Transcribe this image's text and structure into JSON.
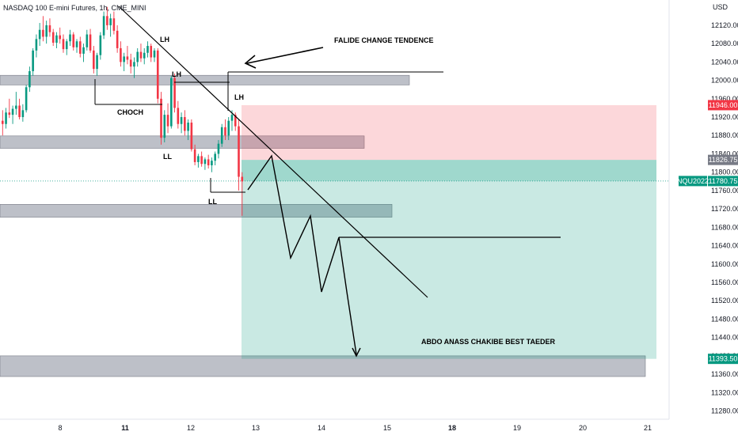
{
  "header": {
    "symbol_title": "NASDAQ 100 E-mini Futures, 1h, CME_MINI"
  },
  "currency": "USD",
  "chart_data": {
    "type": "candlestick",
    "y_ticks": [
      12120,
      12080,
      12040,
      12000,
      11960,
      11920,
      11880,
      11840,
      11800,
      11760,
      11720,
      11680,
      11640,
      11600,
      11560,
      11520,
      11480,
      11440,
      11400,
      11360,
      11320,
      11280
    ],
    "y_tick_labels": [
      "12120.00",
      "12080.00",
      "12040.00",
      "12000.00",
      "11960.00",
      "11920.00",
      "11880.00",
      "11840.00",
      "11800.00",
      "11760.00",
      "11720.00",
      "11680.00",
      "11640.00",
      "11600.00",
      "11560.00",
      "11520.00",
      "11480.00",
      "11440.00",
      "11400.00",
      "11360.00",
      "11320.00",
      "11280.00"
    ],
    "ylim": [
      11262,
      12175
    ],
    "x_ticks": [
      {
        "label": "8",
        "bold": false
      },
      {
        "label": "11",
        "bold": true
      },
      {
        "label": "12",
        "bold": false
      },
      {
        "label": "13",
        "bold": false
      },
      {
        "label": "14",
        "bold": false
      },
      {
        "label": "15",
        "bold": false
      },
      {
        "label": "18",
        "bold": true
      },
      {
        "label": "19",
        "bold": false
      },
      {
        "label": "20",
        "bold": false
      },
      {
        "label": "21",
        "bold": false
      }
    ],
    "price_tags": [
      {
        "label": "11946.00",
        "value": 11946,
        "color": "#f23645"
      },
      {
        "label": "11826.75",
        "value": 11826.75,
        "color": "#787b86"
      },
      {
        "label": "11780.75",
        "value": 11780.75,
        "color": "#089981"
      },
      {
        "label": "11393.50",
        "value": 11393.5,
        "color": "#089981"
      }
    ],
    "symbol_tag": "NQU2022",
    "annotations": {
      "falide": "FALIDE CHANGE TENDENCE",
      "lh1": "LH",
      "lh2": "LH",
      "lh3": "LH",
      "choch": "CHOCH",
      "ll1": "LL",
      "ll2": "LL",
      "author": "ABDO ANASS CHAKIBE BEST TAEDER"
    },
    "zones": [
      {
        "name": "zone-12000",
        "top": 12011,
        "bottom": 11990,
        "x_from": 0,
        "x_to": 517
      },
      {
        "name": "zone-11870",
        "top": 11879,
        "bottom": 11852,
        "x_from": 0,
        "x_to": 460
      },
      {
        "name": "zone-11710",
        "top": 11730,
        "bottom": 11702,
        "x_from": 0,
        "x_to": 495
      },
      {
        "name": "zone-11360",
        "top": 11400,
        "bottom": 11355,
        "x_from": 0,
        "x_to": 815
      }
    ],
    "position": {
      "entry": 11826.75,
      "stop": 11946,
      "target": 11393.5
    },
    "candles": [
      [
        11912,
        11935,
        11880,
        11905
      ],
      [
        11905,
        11940,
        11895,
        11930
      ],
      [
        11930,
        11960,
        11918,
        11925
      ],
      [
        11925,
        11945,
        11905,
        11938
      ],
      [
        11938,
        11975,
        11925,
        11945
      ],
      [
        11945,
        11960,
        11915,
        11920
      ],
      [
        11920,
        11948,
        11910,
        11935
      ],
      [
        11935,
        11990,
        11930,
        11985
      ],
      [
        11985,
        12030,
        11975,
        12020
      ],
      [
        12020,
        12070,
        12010,
        12065
      ],
      [
        12065,
        12100,
        12050,
        12090
      ],
      [
        12090,
        12125,
        12075,
        12110
      ],
      [
        12110,
        12140,
        12085,
        12095
      ],
      [
        12095,
        12130,
        12080,
        12120
      ],
      [
        12120,
        12135,
        12095,
        12105
      ],
      [
        12105,
        12112,
        12075,
        12082
      ],
      [
        12082,
        12105,
        12070,
        12098
      ],
      [
        12098,
        12115,
        12080,
        12090
      ],
      [
        12090,
        12100,
        12060,
        12068
      ],
      [
        12068,
        12090,
        12055,
        12085
      ],
      [
        12085,
        12110,
        12075,
        12100
      ],
      [
        12100,
        12105,
        12065,
        12072
      ],
      [
        12072,
        12090,
        12060,
        12085
      ],
      [
        12085,
        12095,
        12050,
        12058
      ],
      [
        12058,
        12080,
        12040,
        12072
      ],
      [
        12072,
        12110,
        12065,
        12100
      ],
      [
        12100,
        12112,
        12060,
        12065
      ],
      [
        12065,
        12075,
        12015,
        12025
      ],
      [
        12025,
        12060,
        12010,
        12055
      ],
      [
        12055,
        12105,
        12045,
        12098
      ],
      [
        12098,
        12150,
        12090,
        12140
      ],
      [
        12140,
        12160,
        12110,
        12120
      ],
      [
        12120,
        12145,
        12095,
        12135
      ],
      [
        12135,
        12150,
        12100,
        12108
      ],
      [
        12108,
        12120,
        12060,
        12070
      ],
      [
        12070,
        12085,
        12030,
        12040
      ],
      [
        12040,
        12060,
        12020,
        12052
      ],
      [
        12052,
        12075,
        12035,
        12045
      ],
      [
        12045,
        12058,
        12015,
        12030
      ],
      [
        12030,
        12050,
        12005,
        12040
      ],
      [
        12040,
        12070,
        12030,
        12062
      ],
      [
        12062,
        12080,
        12040,
        12048
      ],
      [
        12048,
        12070,
        12035,
        12060
      ],
      [
        12060,
        12085,
        12050,
        12075
      ],
      [
        12075,
        12080,
        12040,
        12050
      ],
      [
        12050,
        12070,
        12040,
        12065
      ],
      [
        12065,
        12070,
        11950,
        11960
      ],
      [
        11960,
        11975,
        11860,
        11875
      ],
      [
        11875,
        11935,
        11865,
        11925
      ],
      [
        11925,
        11950,
        11885,
        11900
      ],
      [
        11900,
        12010,
        11895,
        12005
      ],
      [
        12005,
        12015,
        11930,
        11940
      ],
      [
        11940,
        11955,
        11895,
        11905
      ],
      [
        11905,
        11930,
        11885,
        11920
      ],
      [
        11920,
        11935,
        11880,
        11890
      ],
      [
        11890,
        11915,
        11870,
        11908
      ],
      [
        11908,
        11915,
        11845,
        11850
      ],
      [
        11850,
        11860,
        11815,
        11822
      ],
      [
        11822,
        11840,
        11810,
        11835
      ],
      [
        11835,
        11845,
        11812,
        11818
      ],
      [
        11818,
        11832,
        11805,
        11828
      ],
      [
        11828,
        11838,
        11808,
        11815
      ],
      [
        11815,
        11832,
        11800,
        11825
      ],
      [
        11825,
        11845,
        11815,
        11840
      ],
      [
        11840,
        11870,
        11830,
        11862
      ],
      [
        11862,
        11905,
        11855,
        11898
      ],
      [
        11898,
        11915,
        11870,
        11880
      ],
      [
        11880,
        11920,
        11870,
        11912
      ],
      [
        11912,
        11935,
        11890,
        11925
      ],
      [
        11925,
        11930,
        11890,
        11900
      ],
      [
        11900,
        11915,
        11760,
        11790
      ],
      [
        11790,
        11800,
        11705,
        11780
      ]
    ]
  }
}
